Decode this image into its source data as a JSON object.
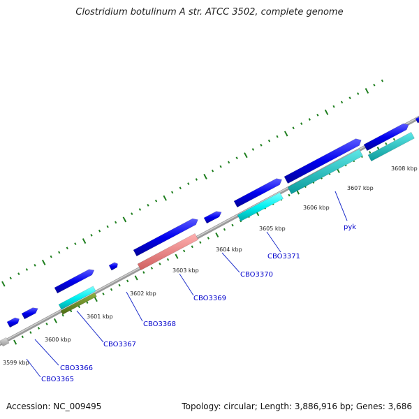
{
  "title": "Clostridium botulinum A str. ATCC 3502, complete genome",
  "accession": "Accession: NC_009495",
  "summary": "Topology: circular; Length: 3,886,916 bp; Genes: 3,686",
  "colors": {
    "backbone": "#888888",
    "forward_cds": "#0000ee",
    "reverse_cds": "#00eeee",
    "reverse_cds_dark": "#10c8c8",
    "rna": "#ef8080",
    "other": "#6b8e23",
    "tick": "#1a7a1a",
    "label": "#0000cc",
    "gray_feature": "#bbbbbb"
  },
  "kbp_labels": [
    "3599 kbp",
    "3600 kbp",
    "3601 kbp",
    "3602 kbp",
    "3603 kbp",
    "3604 kbp",
    "3605 kbp",
    "3606 kbp",
    "3607 kbp",
    "3608 kbp"
  ],
  "gene_labels": [
    "CBO3365",
    "CBO3366",
    "CBO3367",
    "CBO3368",
    "CBO3369",
    "CBO3370",
    "CBO3371",
    "pyk"
  ]
}
